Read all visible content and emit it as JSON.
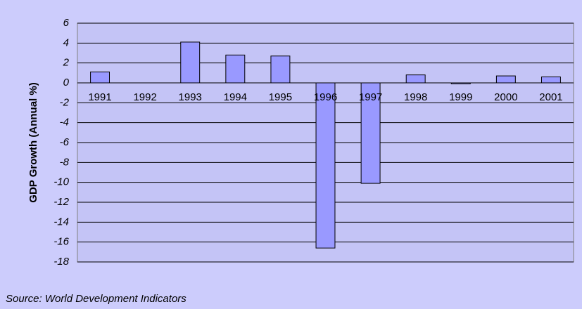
{
  "chart_data": {
    "type": "bar",
    "y_label": "GDP Growth (Annual %)",
    "source": "Source: World Development Indicators",
    "categories": [
      "1991",
      "1992",
      "1993",
      "1994",
      "1995",
      "1996",
      "1997",
      "1998",
      "1999",
      "2000",
      "2001"
    ],
    "values": [
      1.1,
      0,
      4.1,
      2.8,
      2.7,
      -16.6,
      -10.1,
      0.8,
      -0.1,
      0.7,
      0.6
    ],
    "color": "#9999ff",
    "ylim": [
      -18,
      6
    ],
    "yticks": [
      6,
      4,
      2,
      0,
      -2,
      -4,
      -6,
      -8,
      -10,
      -12,
      -14,
      -16,
      -18
    ],
    "grid": true
  }
}
